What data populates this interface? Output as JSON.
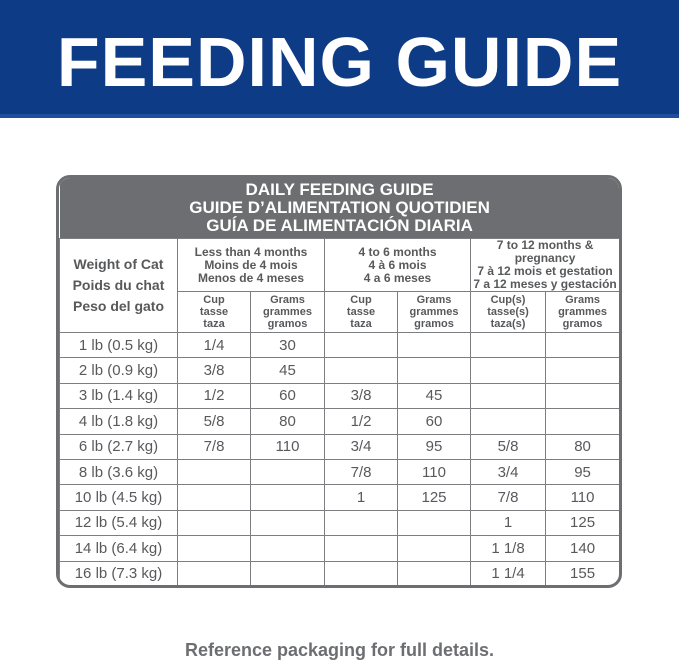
{
  "header": {
    "title": "FEEDING GUIDE"
  },
  "table": {
    "title": [
      "DAILY FEEDING GUIDE",
      "GUIDE D’ALIMENTATION QUOTIDIEN",
      "GUÍA DE ALIMENTACIÓN DIARIA"
    ],
    "weight_header": [
      "Weight of Cat",
      "Poids du chat",
      "Peso del gato"
    ],
    "groups": [
      {
        "label": [
          "Less than 4 months",
          "Moins de 4 mois",
          "Menos de 4 meses"
        ],
        "columns": [
          [
            "Cup",
            "tasse",
            "taza"
          ],
          [
            "Grams",
            "grammes",
            "gramos"
          ]
        ]
      },
      {
        "label": [
          "4 to 6 months",
          "4 à 6 mois",
          "4 a 6 meses"
        ],
        "columns": [
          [
            "Cup",
            "tasse",
            "taza"
          ],
          [
            "Grams",
            "grammes",
            "gramos"
          ]
        ]
      },
      {
        "label": [
          "7 to 12 months & pregnancy",
          "7 à 12 mois et gestation",
          "7 a 12 meses y gestación"
        ],
        "columns": [
          [
            "Cup(s)",
            "tasse(s)",
            "taza(s)"
          ],
          [
            "Grams",
            "grammes",
            "gramos"
          ]
        ]
      }
    ],
    "rows": [
      [
        "1 lb (0.5 kg)",
        "1/4",
        "30",
        null,
        null,
        null,
        null
      ],
      [
        "2 lb (0.9 kg)",
        "3/8",
        "45",
        null,
        null,
        null,
        null
      ],
      [
        "3 lb (1.4 kg)",
        "1/2",
        "60",
        "3/8",
        "45",
        null,
        null
      ],
      [
        "4 lb (1.8 kg)",
        "5/8",
        "80",
        "1/2",
        "60",
        null,
        null
      ],
      [
        "6 lb (2.7 kg)",
        "7/8",
        "110",
        "3/4",
        "95",
        "5/8",
        "80"
      ],
      [
        "8 lb (3.6 kg)",
        null,
        null,
        "7/8",
        "110",
        "3/4",
        "95"
      ],
      [
        "10 lb (4.5 kg)",
        null,
        null,
        "1",
        "125",
        "7/8",
        "110"
      ],
      [
        "12 lb (5.4 kg)",
        null,
        null,
        null,
        null,
        "1",
        "125"
      ],
      [
        "14 lb (6.4 kg)",
        null,
        null,
        null,
        null,
        "1 1/8",
        "140"
      ],
      [
        "16 lb (7.3 kg)",
        null,
        null,
        null,
        null,
        "1 1/4",
        "155"
      ]
    ]
  },
  "footer": "Reference packaging for full details."
}
